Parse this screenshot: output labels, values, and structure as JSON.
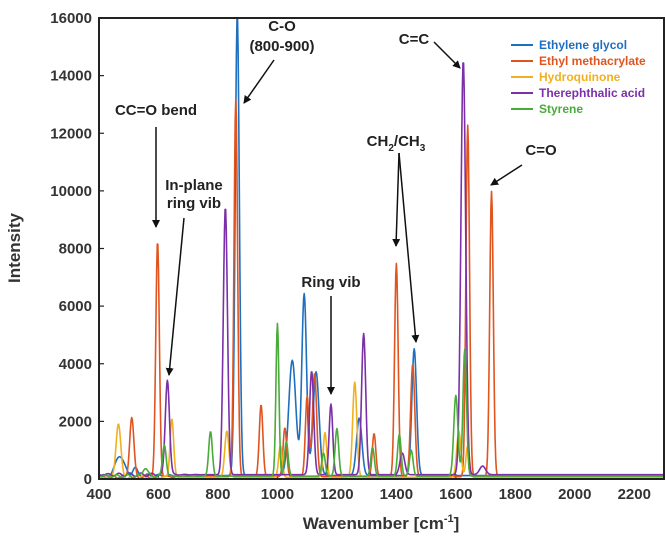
{
  "chart_data": {
    "type": "line",
    "title": "",
    "xlabel_main": "Wavenumber [cm",
    "xlabel_sup": "-1",
    "xlabel_end": "]",
    "ylabel": "Intensity",
    "xlim": [
      400,
      2300
    ],
    "ylim": [
      0,
      16000
    ],
    "xticks": [
      400,
      600,
      800,
      1000,
      1200,
      1400,
      1600,
      1800,
      2000,
      2200
    ],
    "yticks": [
      0,
      2000,
      4000,
      6000,
      8000,
      10000,
      12000,
      14000,
      16000
    ],
    "grid": false,
    "legend_position": "top-right",
    "series": [
      {
        "name": "Ethylene glycol",
        "color": "#1f6fbf",
        "baseline": 120,
        "peaks": [
          [
            470,
            700,
            14
          ],
          [
            520,
            250,
            8
          ],
          [
            865,
            16000,
            7
          ],
          [
            1050,
            4000,
            12
          ],
          [
            1090,
            6300,
            8
          ],
          [
            1130,
            3600,
            10
          ],
          [
            1275,
            2000,
            9
          ],
          [
            1460,
            4400,
            8
          ]
        ]
      },
      {
        "name": "Ethyl methacrylate",
        "color": "#e0551f",
        "baseline": 80,
        "peaks": [
          [
            510,
            2050,
            7
          ],
          [
            597,
            8150,
            6
          ],
          [
            860,
            13100,
            6
          ],
          [
            945,
            2500,
            6
          ],
          [
            1025,
            1700,
            6
          ],
          [
            1100,
            2800,
            6
          ],
          [
            1125,
            3600,
            7
          ],
          [
            1325,
            1500,
            6
          ],
          [
            1400,
            7400,
            6
          ],
          [
            1455,
            3900,
            7
          ],
          [
            1640,
            12200,
            6
          ],
          [
            1720,
            9900,
            6
          ]
        ]
      },
      {
        "name": "Hydroquinone",
        "color": "#f0b020",
        "baseline": 60,
        "peaks": [
          [
            465,
            1850,
            8
          ],
          [
            645,
            2050,
            6
          ],
          [
            830,
            1600,
            7
          ],
          [
            1010,
            1100,
            6
          ],
          [
            1160,
            1550,
            6
          ],
          [
            1260,
            3300,
            7
          ],
          [
            1610,
            1600,
            7
          ],
          [
            1640,
            1100,
            6
          ]
        ]
      },
      {
        "name": "Therephthalic acid",
        "color": "#7b2fa8",
        "baseline": 150,
        "peaks": [
          [
            630,
            3300,
            7
          ],
          [
            825,
            9300,
            7
          ],
          [
            1115,
            3600,
            7
          ],
          [
            1180,
            2450,
            6
          ],
          [
            1290,
            4900,
            7
          ],
          [
            1420,
            750,
            8
          ],
          [
            1625,
            14400,
            8
          ],
          [
            1690,
            300,
            10
          ]
        ]
      },
      {
        "name": "Styrene",
        "color": "#4aaa3a",
        "baseline": 100,
        "peaks": [
          [
            555,
            300,
            8
          ],
          [
            620,
            1100,
            6
          ],
          [
            775,
            1550,
            6
          ],
          [
            1000,
            5300,
            5
          ],
          [
            1030,
            1200,
            6
          ],
          [
            1155,
            800,
            6
          ],
          [
            1200,
            1650,
            6
          ],
          [
            1320,
            1000,
            6
          ],
          [
            1410,
            1450,
            6
          ],
          [
            1450,
            900,
            6
          ],
          [
            1600,
            2800,
            7
          ],
          [
            1630,
            4400,
            6
          ]
        ]
      }
    ],
    "annotations": [
      {
        "text": "CC=O bend",
        "sub": "",
        "tail": ""
      },
      {
        "text": "In-plane",
        "sub": "",
        "tail": ""
      },
      {
        "text": "ring vib",
        "sub": "",
        "tail": ""
      },
      {
        "text": "C-O",
        "sub": "",
        "tail": ""
      },
      {
        "text": "(800-900)",
        "sub": "",
        "tail": ""
      },
      {
        "text": "Ring vib",
        "sub": "",
        "tail": ""
      },
      {
        "text": "CH",
        "sub": "2",
        "tail": "/CH"
      },
      {
        "text": "",
        "sub": "3",
        "tail": ""
      },
      {
        "text": "C=C",
        "sub": "",
        "tail": ""
      },
      {
        "text": "C=O",
        "sub": "",
        "tail": ""
      }
    ]
  }
}
